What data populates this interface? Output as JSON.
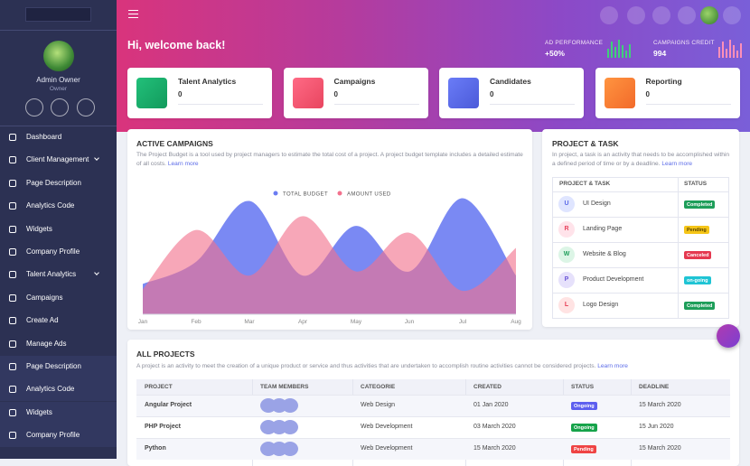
{
  "sidebar": {
    "profile": {
      "name": "Admin Owner",
      "role": "Owner"
    },
    "menu": [
      "Dashboard",
      "Client Management",
      "Page Description",
      "Analytics Code",
      "Widgets",
      "Company Profile",
      "Talent Analytics",
      "Campaigns",
      "Create Ad",
      "Manage Ads",
      "Page Description",
      "Analytics Code",
      "Widgets",
      "Company Profile"
    ]
  },
  "header": {
    "greeting": "Hi, welcome back!",
    "stats": [
      {
        "label": "AD PERFORMANCE",
        "value": "+50%"
      },
      {
        "label": "CAMPAIGNS CREDIT",
        "value": "994"
      }
    ]
  },
  "cards": [
    {
      "title": "Talent Analytics",
      "value": "0"
    },
    {
      "title": "Campaigns",
      "value": "0"
    },
    {
      "title": "Candidates",
      "value": "0"
    },
    {
      "title": "Reporting",
      "value": "0"
    }
  ],
  "active_campaigns": {
    "title": "ACTIVE CAMPAIGNS",
    "description": "The Project Budget is a tool used by project managers to estimate the total cost of a project. A project budget template includes a detailed estimate of all costs.",
    "link": "Learn more",
    "chart": {
      "type": "area",
      "categories": [
        "Jan",
        "Feb",
        "Mar",
        "Apr",
        "May",
        "Jun",
        "Jul",
        "Aug"
      ],
      "ylim": [
        0,
        100
      ],
      "series": [
        {
          "name": "TOTAL BUDGET",
          "color": "#6b7cf2",
          "values": [
            22,
            38,
            82,
            28,
            64,
            31,
            84,
            28
          ]
        },
        {
          "name": "AMOUNT USED",
          "color": "#f2718d",
          "values": [
            18,
            61,
            28,
            71,
            31,
            59,
            17,
            48
          ]
        }
      ]
    }
  },
  "project_task": {
    "title": "PROJECT & TASK",
    "description": "In project, a task is an activity that needs to be accomplished within a defined period of time or by a deadline.",
    "link": "Learn more",
    "columns": [
      "PROJECT & TASK",
      "STATUS"
    ],
    "rows": [
      {
        "initial": "U",
        "name": "UI Design",
        "status": "Completed"
      },
      {
        "initial": "R",
        "name": "Landing Page",
        "status": "Pending"
      },
      {
        "initial": "W",
        "name": "Website & Blog",
        "status": "Canceled"
      },
      {
        "initial": "P",
        "name": "Product Development",
        "status": "on-going"
      },
      {
        "initial": "L",
        "name": "Logo Design",
        "status": "Completed"
      }
    ]
  },
  "all_projects": {
    "title": "ALL PROJECTS",
    "description": "A project is an activity to meet the creation of a unique product or service and thus activities that are undertaken to accomplish routine activities cannot be considered projects.",
    "link": "Learn more",
    "columns": [
      "PROJECT",
      "TEAM MEMBERS",
      "CATEGORIE",
      "CREATED",
      "STATUS",
      "DEADLINE"
    ],
    "rows": [
      {
        "project": "Angular Project",
        "category": "Web Design",
        "created": "01 Jan 2020",
        "status": "Ongoing",
        "deadline": "15 March 2020"
      },
      {
        "project": "PHP Project",
        "category": "Web Development",
        "created": "03 March 2020",
        "status": "Ongoing",
        "deadline": "15 Jun 2020"
      },
      {
        "project": "Python",
        "category": "Web Development",
        "created": "15 March 2020",
        "status": "Pending",
        "deadline": "15 March 2020"
      }
    ]
  }
}
